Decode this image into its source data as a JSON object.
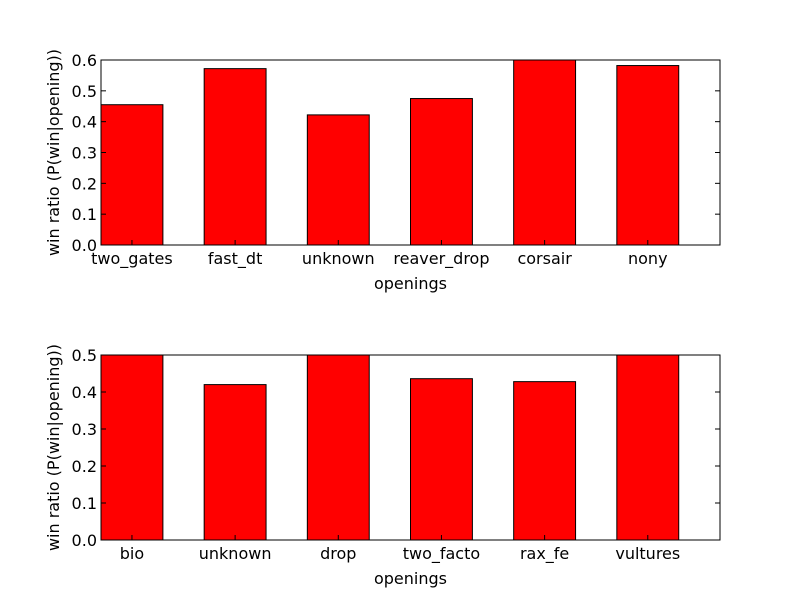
{
  "chart_data": [
    {
      "type": "bar",
      "categories": [
        "two_gates",
        "fast_dt",
        "unknown",
        "reaver_drop",
        "corsair",
        "nony"
      ],
      "values": [
        0.455,
        0.572,
        0.422,
        0.475,
        0.6,
        0.582
      ],
      "yticks": [
        "0.0",
        "0.1",
        "0.2",
        "0.3",
        "0.4",
        "0.5",
        "0.6"
      ],
      "xlabel": "openings",
      "ylabel": "win ratio (P(win|opening))",
      "ylim": [
        0,
        0.6
      ],
      "bar_color": "#ff0000",
      "grid": false
    },
    {
      "type": "bar",
      "categories": [
        "bio",
        "unknown",
        "drop",
        "two_facto",
        "rax_fe",
        "vultures"
      ],
      "values": [
        0.5,
        0.42,
        0.5,
        0.436,
        0.428,
        0.5
      ],
      "yticks": [
        "0.0",
        "0.1",
        "0.2",
        "0.3",
        "0.4",
        "0.5"
      ],
      "xlabel": "openings",
      "ylabel": "win ratio (P(win|opening))",
      "ylim": [
        0,
        0.5
      ],
      "bar_color": "#ff0000",
      "grid": false
    }
  ]
}
